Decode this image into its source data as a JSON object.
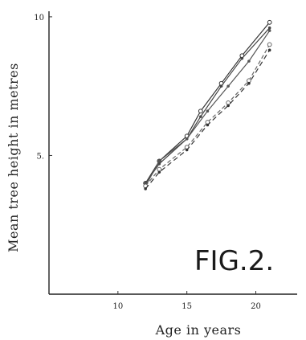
{
  "chart_data": {
    "type": "line",
    "title": "",
    "fig_label": "FIG.2.",
    "xlabel": "Age in years",
    "ylabel": "Mean tree height in metres",
    "xlim": [
      5,
      23
    ],
    "ylim": [
      0,
      10.2
    ],
    "xticks": [
      10,
      15,
      20
    ],
    "yticks": [
      5,
      10
    ],
    "xtick_labels": [
      "10",
      "15",
      "20"
    ],
    "ytick_labels": [
      "5.",
      "10"
    ],
    "grid": false,
    "series": [
      {
        "color": "#333333",
        "dash": "",
        "marker": "open-circle",
        "x": [
          12,
          13,
          15,
          16,
          17.5,
          19,
          21
        ],
        "y": [
          4.0,
          4.8,
          5.7,
          6.6,
          7.6,
          8.6,
          9.8
        ]
      },
      {
        "color": "#444444",
        "dash": "",
        "marker": "dot",
        "x": [
          12,
          13,
          15,
          16,
          17.5,
          19,
          21
        ],
        "y": [
          4.0,
          4.7,
          5.6,
          6.4,
          7.5,
          8.5,
          9.6
        ]
      },
      {
        "color": "#555555",
        "dash": "",
        "marker": "dot",
        "x": [
          12,
          13,
          15,
          16.5,
          18,
          19.5,
          21
        ],
        "y": [
          3.9,
          4.8,
          5.6,
          6.6,
          7.5,
          8.4,
          9.5
        ]
      },
      {
        "color": "#666666",
        "dash": "5,3",
        "marker": "open-circle",
        "x": [
          12,
          13,
          15,
          16.5,
          18,
          19.5,
          21
        ],
        "y": [
          3.9,
          4.5,
          5.3,
          6.2,
          6.9,
          7.7,
          9.0
        ]
      },
      {
        "color": "#333333",
        "dash": "6,4",
        "marker": "dot",
        "x": [
          12,
          13,
          15,
          16.5,
          18,
          19.5,
          21
        ],
        "y": [
          3.8,
          4.4,
          5.2,
          6.1,
          6.8,
          7.6,
          8.8
        ]
      }
    ]
  }
}
